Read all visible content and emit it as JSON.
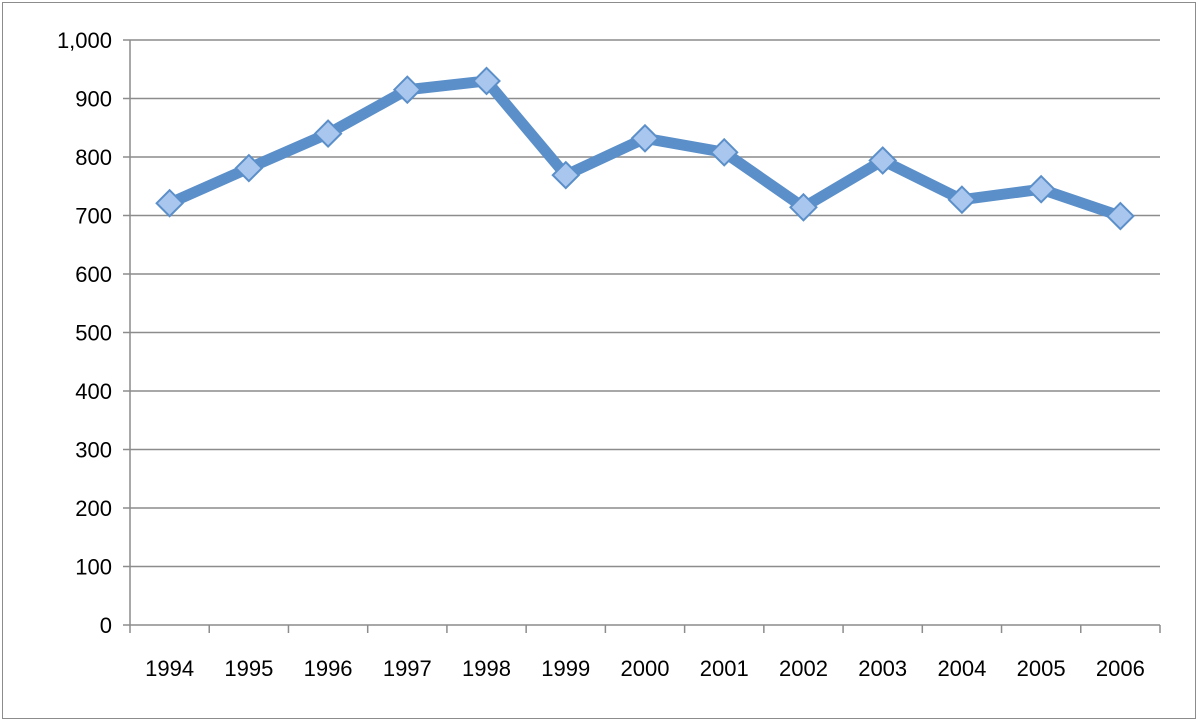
{
  "chart_data": {
    "type": "line",
    "title": "",
    "xlabel": "",
    "ylabel": "",
    "categories": [
      "1994",
      "1995",
      "1996",
      "1997",
      "1998",
      "1999",
      "2000",
      "2001",
      "2002",
      "2003",
      "2004",
      "2005",
      "2006"
    ],
    "series": [
      {
        "values": [
          721,
          781,
          840,
          915,
          930,
          769,
          832,
          808,
          714,
          794,
          727,
          745,
          699
        ],
        "color": "#5b8fc9",
        "marker": "diamond",
        "marker_color": "#a9c6ee"
      }
    ],
    "ylim": [
      0,
      1000
    ],
    "yticks": [
      0,
      100,
      200,
      300,
      400,
      500,
      600,
      700,
      800,
      900,
      1000
    ],
    "ytick_labels": [
      "0",
      "100",
      "200",
      "300",
      "400",
      "500",
      "600",
      "700",
      "800",
      "900",
      "1,000"
    ],
    "grid": true,
    "legend": "none"
  }
}
